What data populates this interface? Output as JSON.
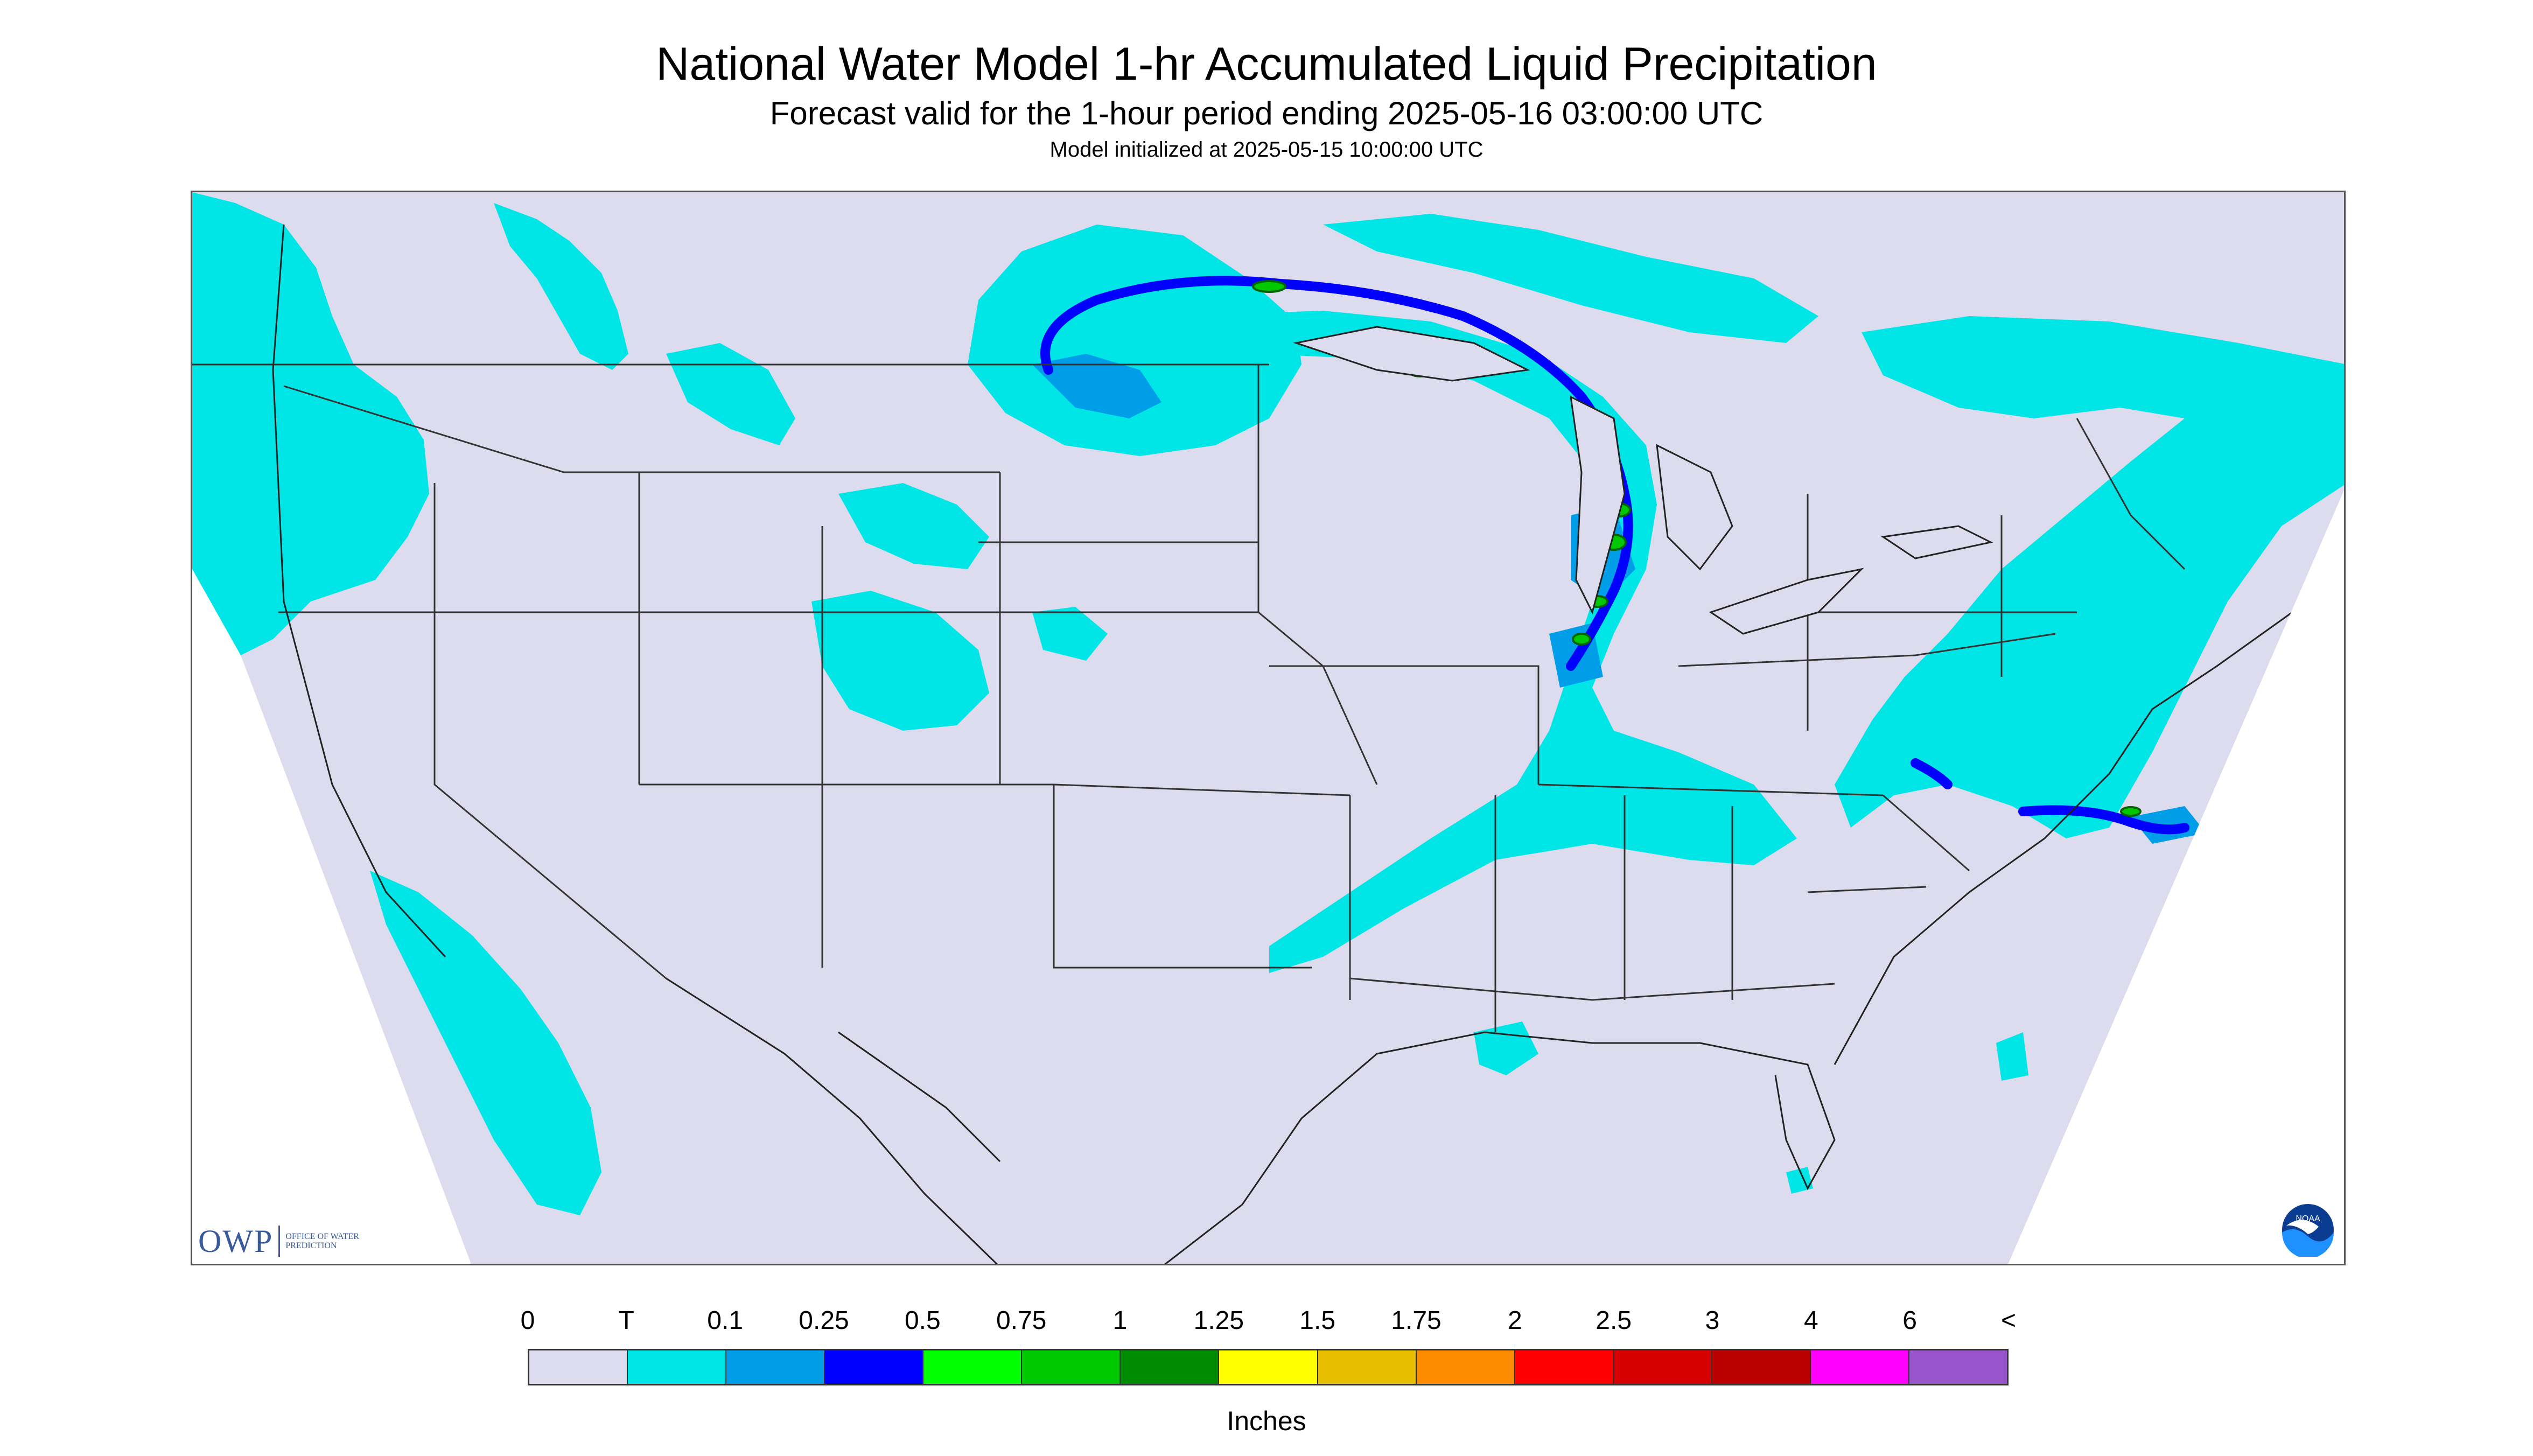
{
  "title": "National Water Model 1-hr Accumulated Liquid Precipitation",
  "subtitle": "Forecast valid for the 1-hour period ending 2025-05-16 03:00:00 UTC",
  "init": "Model initialized at 2025-05-15 10:00:00 UTC",
  "map": {
    "region": "Contiguous United States",
    "background_color": "#dcdcee",
    "outside_color": "#ffffff",
    "border_color": "#333333",
    "precip_colors": {
      "trace": "#00e5e5",
      "light": "#009ee8",
      "medium": "#0000ff",
      "heavy": "#00c800"
    }
  },
  "logos": {
    "owp": {
      "mark": "OWP",
      "text": "Office of Water Prediction",
      "icon": "owp-logo"
    },
    "noaa": {
      "text": "NOAA",
      "icon": "noaa-logo"
    }
  },
  "legend": {
    "units": "Inches",
    "ticks": [
      "0",
      "T",
      "0.1",
      "0.25",
      "0.5",
      "0.75",
      "1",
      "1.25",
      "1.5",
      "1.75",
      "2",
      "2.5",
      "3",
      "4",
      "6",
      "<"
    ],
    "colors": [
      "#dcdcee",
      "#00e5e5",
      "#009ee8",
      "#0000ff",
      "#00ff00",
      "#00c800",
      "#008c00",
      "#ffff00",
      "#e5bf00",
      "#ff8c00",
      "#ff0000",
      "#d70000",
      "#bb0000",
      "#ff00ff",
      "#9955cc"
    ]
  }
}
